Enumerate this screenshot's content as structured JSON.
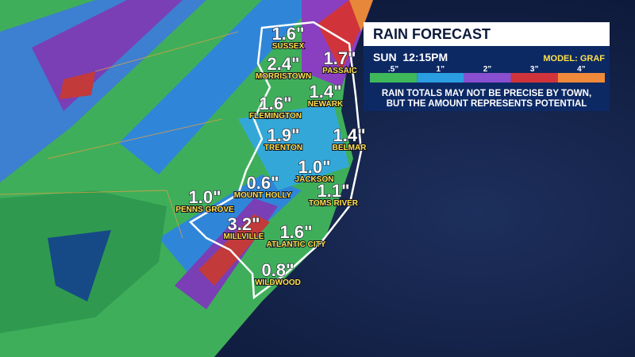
{
  "panel": {
    "title": "RAIN FORECAST",
    "time": "SUN  12:15PM",
    "model": "MODEL: GRAF",
    "legend": [
      ".5”",
      "1”",
      "2”",
      "3”",
      "4”"
    ],
    "disclaimer": [
      "RAIN TOTALS MAY NOT BE PRECISE BY TOWN,",
      "BUT THE AMOUNT REPRESENTS POTENTIAL"
    ]
  },
  "towns": [
    {
      "name": "SUSSEX",
      "total": "1.6\""
    },
    {
      "name": "MORRISTOWN",
      "total": "2.4\""
    },
    {
      "name": "PASSAIC",
      "total": "1.7\""
    },
    {
      "name": "NEWARK",
      "total": "1.4\""
    },
    {
      "name": "FLEMINGTON",
      "total": "1.6\""
    },
    {
      "name": "TRENTON",
      "total": "1.9\""
    },
    {
      "name": "BELMAR",
      "total": "1.4\""
    },
    {
      "name": "JACKSON",
      "total": "1.0\""
    },
    {
      "name": "MOUNT HOLLY",
      "total": "0.6\""
    },
    {
      "name": "PENNS GROVE",
      "total": "1.0\""
    },
    {
      "name": "TOMS RIVER",
      "total": "1.1\""
    },
    {
      "name": "MILLVILLE",
      "total": "3.2\""
    },
    {
      "name": "ATLANTIC CITY",
      "total": "1.6\""
    },
    {
      "name": "WILDWOOD",
      "total": "0.8\""
    }
  ]
}
